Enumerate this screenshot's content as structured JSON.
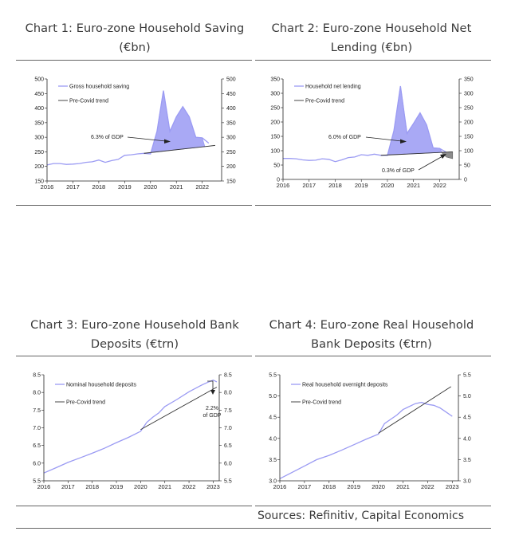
{
  "charts": [
    {
      "title": "Chart 1: Euro-zone Household Saving (€bn)",
      "legend": [
        "Gross household saving",
        "Pre-Covid trend"
      ],
      "annotation": "6.3% of GDP",
      "ticks_left": [
        "500",
        "450",
        "400",
        "350",
        "300",
        "250",
        "200",
        "150"
      ],
      "ticks_right": [
        "500",
        "450",
        "400",
        "350",
        "300",
        "250",
        "200",
        "150"
      ],
      "ticks_x": [
        "2016",
        "2017",
        "2018",
        "2019",
        "2020",
        "2021",
        "2022"
      ]
    },
    {
      "title": "Chart 2: Euro-zone Household Net Lending (€bn)",
      "legend": [
        "Household net lending",
        "Pre-Covid trend"
      ],
      "annotation": "6.0% of GDP",
      "annotation2": "0.3% of GDP",
      "ticks_left": [
        "350",
        "300",
        "250",
        "200",
        "150",
        "100",
        "50",
        "0"
      ],
      "ticks_right": [
        "350",
        "300",
        "250",
        "200",
        "150",
        "100",
        "50",
        "0"
      ],
      "ticks_x": [
        "2016",
        "2017",
        "2018",
        "2019",
        "2020",
        "2021",
        "2022"
      ]
    },
    {
      "title": "Chart 3: Euro-zone Household Bank Deposits (€trn)",
      "legend": [
        "Nominal household deposits",
        "Pre-Covid trend"
      ],
      "annotation_line1": "2.2%",
      "annotation_line2": "of GDP",
      "ticks_left": [
        "8.5",
        "8.0",
        "7.5",
        "7.0",
        "6.5",
        "6.0",
        "5.5"
      ],
      "ticks_right": [
        "8.5",
        "8.0",
        "7.5",
        "7.0",
        "6.5",
        "6.0",
        "5.5"
      ],
      "ticks_x": [
        "2016",
        "2017",
        "2018",
        "2019",
        "2020",
        "2021",
        "2022",
        "2023"
      ]
    },
    {
      "title": "Chart 4: Euro-zone Real Household Bank Deposits (€trn)",
      "legend": [
        "Real household overnight deposits",
        "Pre-Covid trend"
      ],
      "ticks_left": [
        "5.5",
        "5.0",
        "4.5",
        "4.0",
        "3.5",
        "3.0"
      ],
      "ticks_right": [
        "5.5",
        "5.0",
        "4.5",
        "4.0",
        "3.5",
        "3.0"
      ],
      "ticks_x": [
        "2016",
        "2017",
        "2018",
        "2019",
        "2020",
        "2021",
        "2022",
        "2023"
      ]
    }
  ],
  "sources": "Sources: Refinitiv, Capital Economics",
  "colors": {
    "series": "#9b9bf3",
    "series_fill": "#a9a9f5",
    "trend": "#333333",
    "gap_fill": "#8c8c8c"
  },
  "chart_data": [
    {
      "type": "area",
      "title": "Chart 1: Euro-zone Household Saving (€bn)",
      "ylim": [
        150,
        500
      ],
      "xlim": [
        2016,
        2022.75
      ],
      "series": [
        {
          "name": "Gross household saving",
          "x": [
            2016.0,
            2016.25,
            2016.5,
            2016.75,
            2017.0,
            2017.25,
            2017.5,
            2017.75,
            2018.0,
            2018.25,
            2018.5,
            2018.75,
            2019.0,
            2019.25,
            2019.5,
            2019.75,
            2020.0,
            2020.25,
            2020.5,
            2020.75,
            2021.0,
            2021.25,
            2021.5,
            2021.75,
            2022.0,
            2022.25
          ],
          "values": [
            205,
            210,
            210,
            207,
            208,
            210,
            214,
            216,
            222,
            214,
            220,
            224,
            238,
            240,
            243,
            245,
            243,
            320,
            460,
            320,
            370,
            405,
            370,
            300,
            298,
            280
          ]
        },
        {
          "name": "Pre-Covid trend",
          "x": [
            2019.75,
            2022.5
          ],
          "values": [
            245,
            272
          ]
        }
      ]
    },
    {
      "type": "area",
      "title": "Chart 2: Euro-zone Household Net Lending (€bn)",
      "ylim": [
        0,
        350
      ],
      "xlim": [
        2016,
        2022.75
      ],
      "series": [
        {
          "name": "Household net lending",
          "x": [
            2016.0,
            2016.25,
            2016.5,
            2016.75,
            2017.0,
            2017.25,
            2017.5,
            2017.75,
            2018.0,
            2018.25,
            2018.5,
            2018.75,
            2019.0,
            2019.25,
            2019.5,
            2019.75,
            2020.0,
            2020.25,
            2020.5,
            2020.75,
            2021.0,
            2021.25,
            2021.5,
            2021.75,
            2022.0,
            2022.25
          ],
          "values": [
            73,
            73,
            72,
            68,
            66,
            67,
            72,
            70,
            62,
            68,
            76,
            78,
            86,
            84,
            88,
            84,
            84,
            170,
            325,
            160,
            195,
            232,
            190,
            110,
            108,
            95
          ]
        },
        {
          "name": "Pre-Covid trend",
          "x": [
            2019.75,
            2022.5
          ],
          "values": [
            84,
            96
          ]
        }
      ]
    },
    {
      "type": "line",
      "title": "Chart 3: Euro-zone Household Bank Deposits (€trn)",
      "ylim": [
        5.5,
        8.5
      ],
      "xlim": [
        2016,
        2023.25
      ],
      "series": [
        {
          "name": "Nominal household deposits",
          "x": [
            2016.0,
            2016.5,
            2017.0,
            2017.5,
            2018.0,
            2018.5,
            2019.0,
            2019.5,
            2020.0,
            2020.25,
            2020.5,
            2020.75,
            2021.0,
            2021.5,
            2022.0,
            2022.5,
            2022.75,
            2023.0,
            2023.15
          ],
          "values": [
            5.72,
            5.87,
            6.02,
            6.15,
            6.28,
            6.42,
            6.58,
            6.73,
            6.9,
            7.15,
            7.3,
            7.42,
            7.6,
            7.8,
            8.02,
            8.2,
            8.28,
            8.35,
            8.3
          ]
        },
        {
          "name": "Pre-Covid trend",
          "x": [
            2020.0,
            2023.15
          ],
          "values": [
            6.95,
            8.15
          ]
        }
      ]
    },
    {
      "type": "line",
      "title": "Chart 4: Euro-zone Real Household Bank Deposits (€trn)",
      "ylim": [
        3.0,
        5.5
      ],
      "xlim": [
        2016,
        2023.25
      ],
      "series": [
        {
          "name": "Real household overnight deposits",
          "x": [
            2016.0,
            2016.5,
            2017.0,
            2017.5,
            2018.0,
            2018.5,
            2019.0,
            2019.5,
            2020.0,
            2020.25,
            2020.5,
            2020.75,
            2021.0,
            2021.5,
            2021.75,
            2022.0,
            2022.25,
            2022.5,
            2022.75,
            2023.0
          ],
          "values": [
            3.05,
            3.2,
            3.35,
            3.5,
            3.6,
            3.72,
            3.85,
            3.98,
            4.1,
            4.35,
            4.45,
            4.55,
            4.68,
            4.82,
            4.85,
            4.8,
            4.78,
            4.72,
            4.62,
            4.52
          ]
        },
        {
          "name": "Pre-Covid trend",
          "x": [
            2020.0,
            2022.95
          ],
          "values": [
            4.12,
            5.22
          ]
        }
      ]
    }
  ]
}
